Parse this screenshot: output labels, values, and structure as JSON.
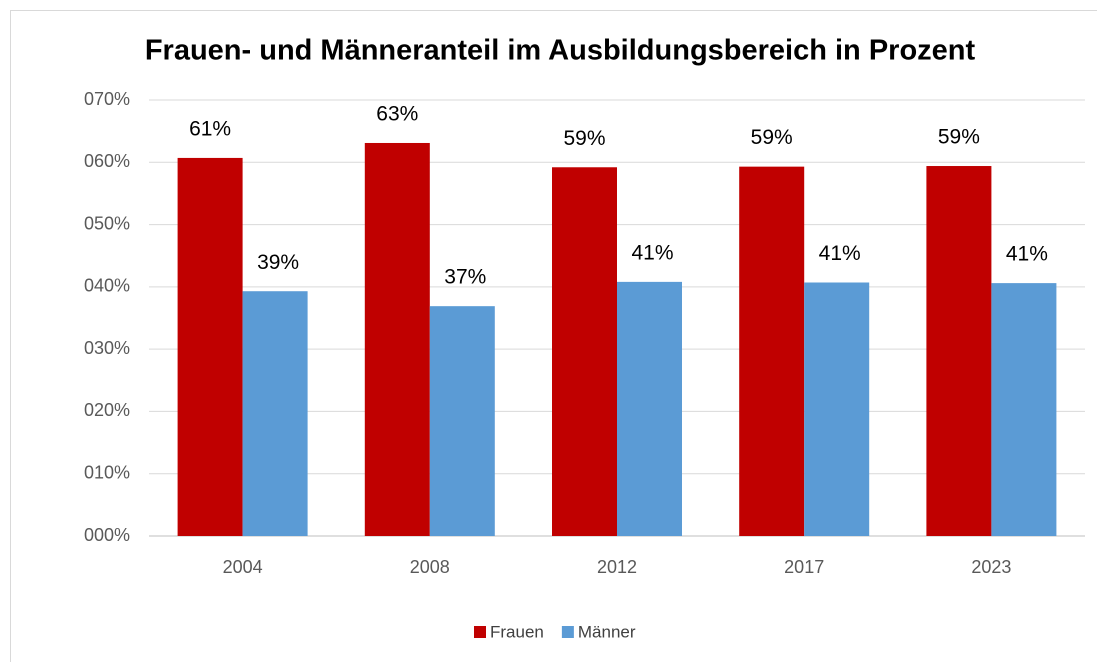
{
  "chart_data": {
    "type": "bar",
    "title": "Frauen- und Männeranteil im Ausbildungsbereich in Prozent",
    "categories": [
      "2004",
      "2008",
      "2012",
      "2017",
      "2023"
    ],
    "series": [
      {
        "name": "Frauen",
        "color": "#c00000",
        "values": [
          60.7,
          63.1,
          59.2,
          59.3,
          59.4
        ],
        "value_labels": [
          "61%",
          "63%",
          "59%",
          "59%",
          "59%"
        ]
      },
      {
        "name": "Männer",
        "color": "#5b9bd5",
        "values": [
          39.3,
          36.9,
          40.8,
          40.7,
          40.6
        ],
        "value_labels": [
          "39%",
          "37%",
          "41%",
          "41%",
          "41%"
        ]
      }
    ],
    "ylim": [
      0,
      70
    ],
    "yticks": [
      {
        "value": 0,
        "label": "000%"
      },
      {
        "value": 10,
        "label": "010%"
      },
      {
        "value": 20,
        "label": "020%"
      },
      {
        "value": 30,
        "label": "030%"
      },
      {
        "value": 40,
        "label": "040%"
      },
      {
        "value": 50,
        "label": "050%"
      },
      {
        "value": 60,
        "label": "060%"
      },
      {
        "value": 70,
        "label": "070%"
      }
    ],
    "grid": true,
    "legend": "bottom"
  }
}
